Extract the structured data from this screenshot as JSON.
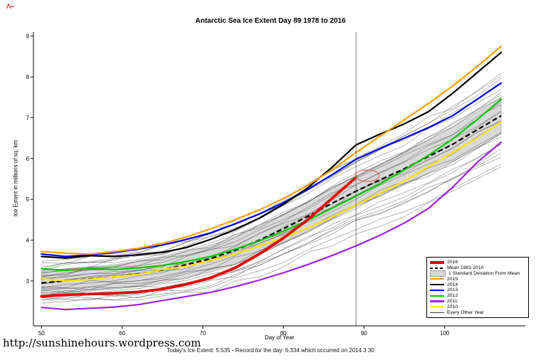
{
  "footer": {
    "url": "http://sunshinehours.wordpress.com",
    "caption": "Today's Ice Extent: 5.535  - Record for the day: 6.334 which occurred on 2014 3 30"
  },
  "chart_data": {
    "type": "line",
    "title": "Antarctic Sea Ice Extent Day 89 1978 to 2016",
    "xlabel": "Day of Year",
    "ylabel": "Ice Extent in millions of sq. km",
    "xlim": [
      49,
      110
    ],
    "ylim": [
      1.9,
      9.1
    ],
    "xticks": [
      50,
      60,
      70,
      80,
      90,
      100
    ],
    "yticks": [
      3,
      4,
      5,
      6,
      7,
      8,
      9
    ],
    "grid": false,
    "vline_day": 89,
    "x": [
      50,
      53,
      56,
      59,
      62,
      65,
      68,
      71,
      74,
      77,
      80,
      83,
      86,
      89,
      92,
      95,
      98,
      101,
      104,
      107
    ],
    "mean_1981_2010": [
      2.95,
      3.0,
      3.05,
      3.1,
      3.17,
      3.27,
      3.4,
      3.55,
      3.75,
      4.0,
      4.28,
      4.58,
      4.9,
      5.2,
      5.48,
      5.75,
      6.05,
      6.35,
      6.7,
      7.05
    ],
    "std_dev": [
      0.3,
      0.3,
      0.3,
      0.3,
      0.31,
      0.31,
      0.32,
      0.33,
      0.34,
      0.35,
      0.36,
      0.37,
      0.38,
      0.38,
      0.39,
      0.4,
      0.41,
      0.42,
      0.44,
      0.45
    ],
    "series": [
      {
        "name": "2016",
        "color": "#E60000",
        "width": 3.8,
        "values": [
          2.62,
          2.66,
          2.68,
          2.7,
          2.73,
          2.8,
          2.92,
          3.08,
          3.32,
          3.66,
          4.05,
          4.5,
          5.02,
          5.535
        ]
      },
      {
        "name": "2015",
        "color": "#FF9F00",
        "width": 2.2,
        "values": [
          3.72,
          3.68,
          3.66,
          3.72,
          3.8,
          3.92,
          4.08,
          4.28,
          4.5,
          4.74,
          5.02,
          5.34,
          5.72,
          6.15,
          6.55,
          6.95,
          7.35,
          7.78,
          8.25,
          8.75
        ]
      },
      {
        "name": "2014",
        "color": "#000000",
        "width": 2.2,
        "values": [
          3.6,
          3.56,
          3.62,
          3.6,
          3.64,
          3.7,
          3.82,
          4.02,
          4.26,
          4.54,
          4.88,
          5.28,
          5.78,
          6.334,
          6.6,
          6.85,
          7.15,
          7.6,
          8.1,
          8.6
        ]
      },
      {
        "name": "2013",
        "color": "#0000EE",
        "width": 2.2,
        "values": [
          3.66,
          3.6,
          3.64,
          3.7,
          3.78,
          3.88,
          4.02,
          4.18,
          4.4,
          4.64,
          4.92,
          5.24,
          5.6,
          5.98,
          6.25,
          6.5,
          6.76,
          7.05,
          7.45,
          7.85
        ]
      },
      {
        "name": "2012",
        "color": "#00C800",
        "width": 2.2,
        "values": [
          3.3,
          3.26,
          3.3,
          3.28,
          3.32,
          3.38,
          3.48,
          3.6,
          3.78,
          3.98,
          4.22,
          4.48,
          4.78,
          5.08,
          5.38,
          5.72,
          6.08,
          6.48,
          6.95,
          7.45
        ]
      },
      {
        "name": "2011",
        "color": "#A020F0",
        "width": 2.2,
        "values": [
          2.35,
          2.3,
          2.33,
          2.36,
          2.42,
          2.52,
          2.62,
          2.72,
          2.86,
          3.02,
          3.2,
          3.4,
          3.62,
          3.86,
          4.12,
          4.42,
          4.78,
          5.3,
          5.9,
          6.4
        ]
      },
      {
        "name": "2010",
        "color": "#FFE200",
        "width": 2.2,
        "values": [
          3.05,
          3.0,
          3.04,
          3.1,
          3.16,
          3.28,
          3.36,
          3.5,
          3.66,
          3.86,
          4.06,
          4.3,
          4.56,
          4.86,
          5.15,
          5.45,
          5.8,
          6.15,
          6.5,
          6.9
        ]
      }
    ],
    "other_years": {
      "label": "Every Other Year",
      "count": 26,
      "color": "#3C3C3C",
      "width": 0.5
    },
    "band": {
      "label": "1 Standard Deviation From Mean",
      "fill": "#D9D9D9",
      "edge": "#9A9A9A"
    },
    "mean_style": {
      "label": "Mean 1981-2010",
      "color": "#000000",
      "dash": "7,4",
      "width": 2.2
    },
    "annotation": {
      "shape": "ellipse",
      "day": 90.4,
      "value": 5.58,
      "color": "#E57373"
    },
    "legend": {
      "position": "bottom-right",
      "items": [
        {
          "label": "2016",
          "swatch": "thick",
          "color": "#E60000"
        },
        {
          "label": "Mean 1981-2010",
          "swatch": "dashed",
          "color": "#000000"
        },
        {
          "label": "1 Standard Deviation From Mean",
          "swatch": "box",
          "color": "#D9D9D9"
        },
        {
          "label": "2015",
          "swatch": "line",
          "color": "#FF9F00"
        },
        {
          "label": "2014",
          "swatch": "line",
          "color": "#000000"
        },
        {
          "label": "2013",
          "swatch": "line",
          "color": "#0000EE"
        },
        {
          "label": "2012",
          "swatch": "line",
          "color": "#00C800"
        },
        {
          "label": "2011",
          "swatch": "line",
          "color": "#A020F0"
        },
        {
          "label": "2010",
          "swatch": "line",
          "color": "#FFE200"
        },
        {
          "label": "Every Other Year",
          "swatch": "thin",
          "color": "#3C3C3C"
        }
      ]
    }
  }
}
